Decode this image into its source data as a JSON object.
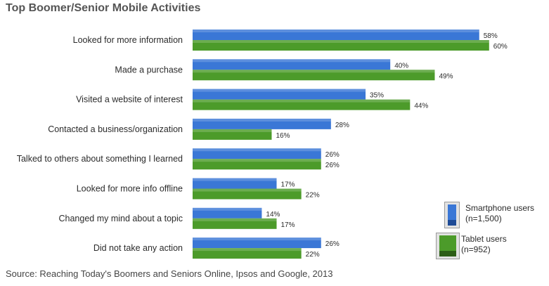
{
  "title": "Top Boomer/Senior Mobile Activities",
  "source": "Source: Reaching Today's Boomers and Seniors Online, Ipsos and Google, 2013",
  "legend": {
    "smartphone": {
      "line1": "Smartphone users",
      "line2": "(n=1,500)"
    },
    "tablet": {
      "line1": "Tablet users",
      "line2": "(n=952)"
    }
  },
  "colors": {
    "smartphone": "#3a77d6",
    "smartphone_dark": "#1d4a96",
    "tablet": "#4c9b2a",
    "tablet_dark": "#2c5d16"
  },
  "chart_data": {
    "type": "bar",
    "orientation": "horizontal",
    "categories": [
      "Looked for more information",
      "Made a purchase",
      "Visited a website of interest",
      "Contacted a business/organization",
      "Talked to others about something I learned",
      "Looked for more info offline",
      "Changed my mind about a topic",
      "Did not take any action"
    ],
    "series": [
      {
        "name": "Smartphone users (n=1,500)",
        "values": [
          58,
          40,
          35,
          28,
          26,
          17,
          14,
          26
        ],
        "labels": [
          "58%",
          "40%",
          "35%",
          "28%",
          "26%",
          "17%",
          "14%",
          "26%"
        ]
      },
      {
        "name": "Tablet users (n=952)",
        "values": [
          60,
          49,
          44,
          16,
          26,
          22,
          17,
          22
        ],
        "labels": [
          "60%",
          "49%",
          "44%",
          "16%",
          "26%",
          "22%",
          "17%",
          "22%"
        ]
      }
    ],
    "xlim": [
      0,
      70
    ],
    "grid": false,
    "legend_position": "bottom-right"
  }
}
